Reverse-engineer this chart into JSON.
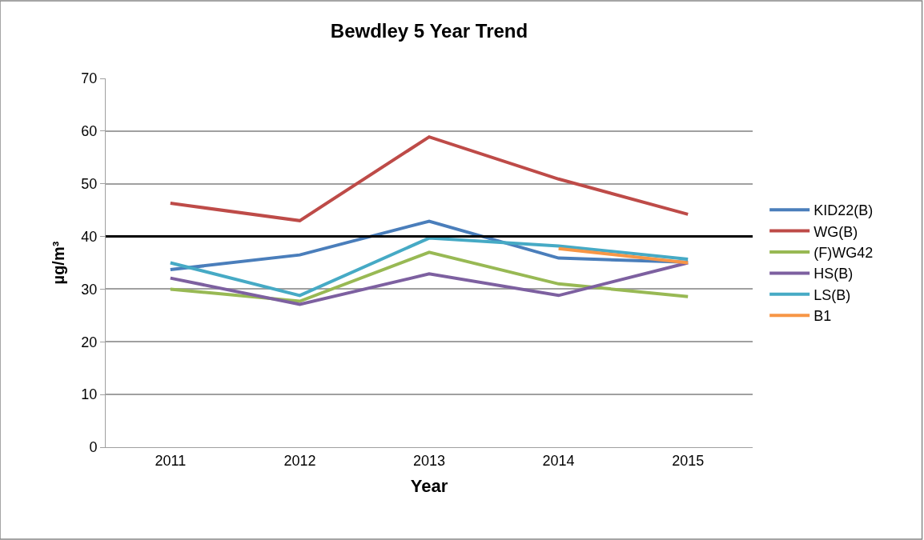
{
  "chart_data": {
    "type": "line",
    "title": "Bewdley 5 Year Trend",
    "xlabel": "Year",
    "ylabel": "µg/m³",
    "categories": [
      "2011",
      "2012",
      "2013",
      "2014",
      "2015"
    ],
    "series": [
      {
        "name": "KID22(B)",
        "color": "#4a7ebb",
        "values": [
          33.7,
          36.5,
          42.9,
          35.9,
          35.1
        ]
      },
      {
        "name": "WG(B)",
        "color": "#be4b48",
        "values": [
          46.3,
          43.0,
          58.9,
          50.9,
          44.2
        ]
      },
      {
        "name": "(F)WG42",
        "color": "#98b954",
        "values": [
          30.0,
          27.7,
          37.0,
          31.0,
          28.6
        ]
      },
      {
        "name": "HS(B)",
        "color": "#7d60a0",
        "values": [
          32.1,
          27.1,
          32.9,
          28.8,
          35.0
        ]
      },
      {
        "name": "LS(B)",
        "color": "#46aac5",
        "values": [
          35.0,
          28.8,
          39.7,
          38.2,
          35.7
        ]
      },
      {
        "name": "B1",
        "color": "#f79646",
        "values": [
          null,
          null,
          null,
          37.7,
          35.0
        ]
      }
    ],
    "ref_lines": [
      {
        "axis": "y",
        "value": 40,
        "color": "#000000"
      }
    ],
    "ylim": [
      0,
      70
    ],
    "yticks": [
      0,
      10,
      20,
      30,
      40,
      50,
      60,
      70
    ],
    "grid": "y",
    "legend": "right",
    "marker": "none",
    "line_style": "solid"
  }
}
